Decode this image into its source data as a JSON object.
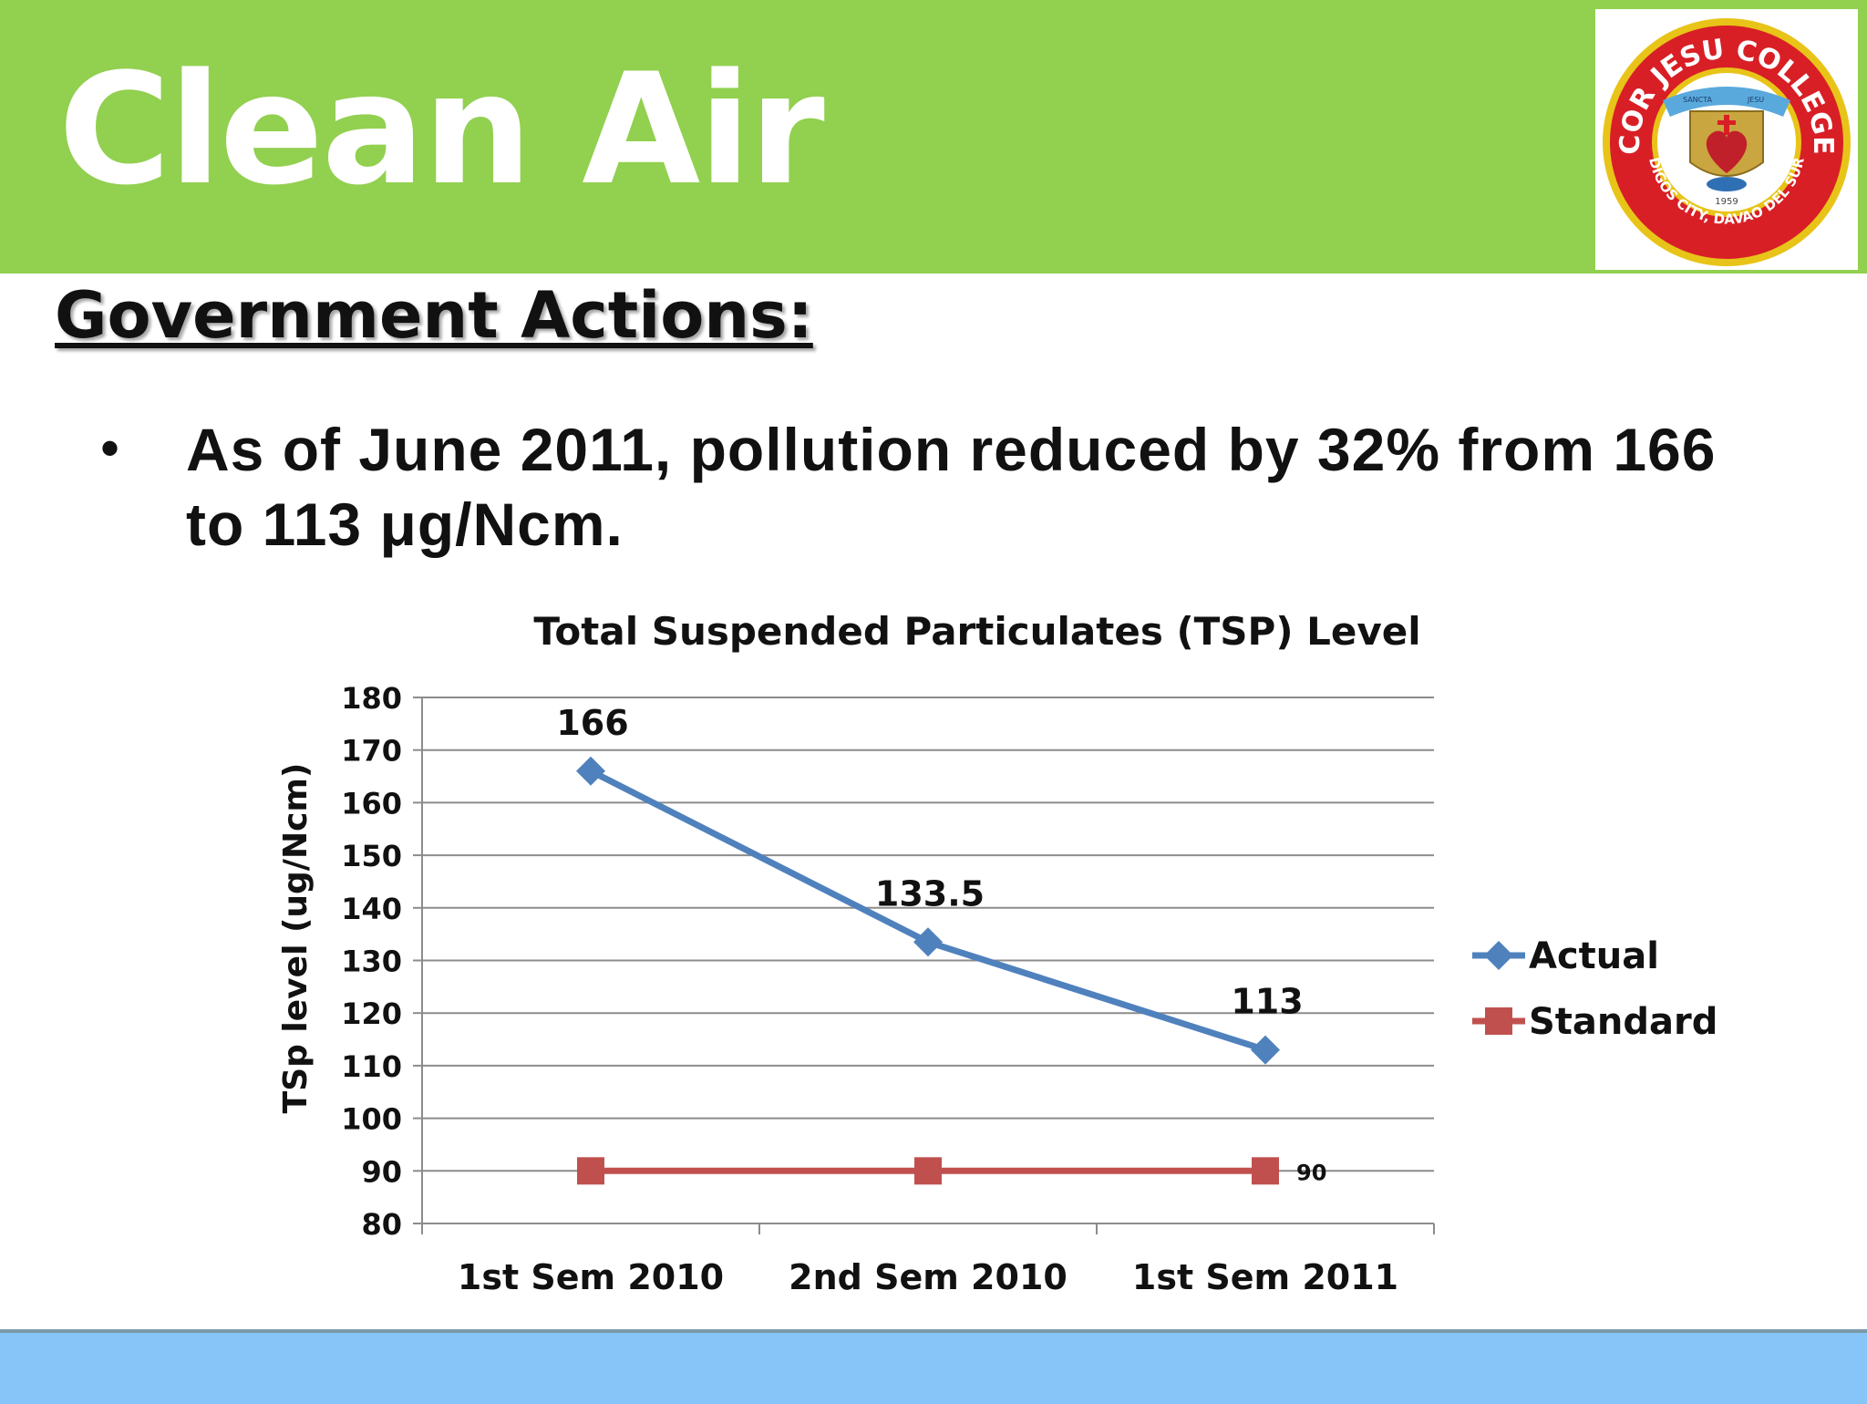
{
  "slide": {
    "title": "Clean Air",
    "section_heading": "Government Actions:",
    "bullet": "As of June 2011, pollution reduced by 32% from 166 to 113 μg/Ncm."
  },
  "logo": {
    "name": "COR JESU COLLEGE",
    "location": "DIGOS CITY, DAVAO DEL SUR",
    "banner_left": "SANCTA",
    "banner_right": "JESU",
    "year": "1959"
  },
  "colors": {
    "header": "#92d050",
    "footer": "#87c4f7",
    "actual": "#4f81bd",
    "standard": "#c0504d"
  },
  "chart_data": {
    "type": "line",
    "title": "Total Suspended Particulates (TSP) Level",
    "xlabel": "",
    "ylabel": "TSp level (ug/Ncm)",
    "categories": [
      "1st Sem 2010",
      "2nd Sem 2010",
      "1st Sem 2011"
    ],
    "ylim": [
      80,
      180
    ],
    "yticks": [
      80,
      90,
      100,
      110,
      120,
      130,
      140,
      150,
      160,
      170,
      180
    ],
    "grid": true,
    "legend_position": "right",
    "series": [
      {
        "name": "Actual",
        "values": [
          166,
          133.5,
          113
        ],
        "labels": [
          "166",
          "133.5",
          "113"
        ],
        "marker": "diamond",
        "color": "#4f81bd"
      },
      {
        "name": "Standard",
        "values": [
          90,
          90,
          90
        ],
        "labels": [
          "",
          "",
          "90"
        ],
        "marker": "square",
        "color": "#c0504d"
      }
    ]
  }
}
